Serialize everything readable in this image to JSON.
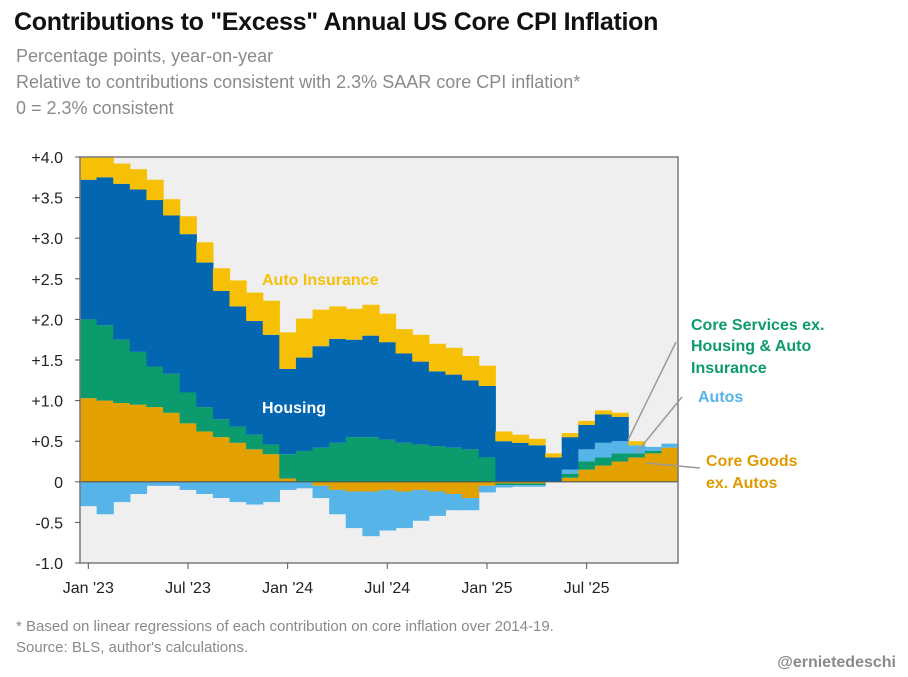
{
  "header": {
    "title": "Contributions to \"Excess\" Annual US Core CPI Inflation",
    "subtitle_1": "Percentage points, year-on-year",
    "subtitle_2": "Relative to contributions consistent with 2.3% SAAR core CPI inflation*",
    "subtitle_3": "0 = 2.3% consistent"
  },
  "footer": {
    "note": "* Based on linear regressions of each contribution on core inflation over 2014-19.",
    "source": "Source: BLS, author's calculations.",
    "handle": "@ernietedeschi"
  },
  "chart_data": {
    "type": "bar",
    "stacked": true,
    "x_tick_labels": [
      "Jan '23",
      "Jul '23",
      "Jan '24",
      "Jul '24",
      "Jan '25",
      "Jul '25"
    ],
    "y_tick_labels": [
      "+4.0",
      "+3.5",
      "+3.0",
      "+2.5",
      "+2.0",
      "+1.5",
      "+1.0",
      "+0.5",
      "0",
      "-0.5",
      "-1.0"
    ],
    "ylim": [
      -1.0,
      4.0
    ],
    "grid": false,
    "categories": [
      "Jan 2023",
      "Feb 2023",
      "Mar 2023",
      "Apr 2023",
      "May 2023",
      "Jun 2023",
      "Jul 2023",
      "Aug 2023",
      "Sep 2023",
      "Oct 2023",
      "Nov 2023",
      "Dec 2023",
      "Jan 2024",
      "Feb 2024",
      "Mar 2024",
      "Apr 2024",
      "May 2024",
      "Jun 2024",
      "Jul 2024",
      "Aug 2024",
      "Sep 2024",
      "Oct 2024",
      "Nov 2024",
      "Dec 2024",
      "Jan 2025",
      "Feb 2025",
      "Mar 2025",
      "Apr 2025",
      "May 2025",
      "Jun 2025",
      "Jul 2025",
      "Aug 2025",
      "Sep 2025",
      "Oct 2025",
      "Nov 2025",
      "Dec 2025"
    ],
    "series": [
      {
        "name": "Core Goods ex. Autos",
        "color": "#e3a100",
        "values": [
          1.03,
          1.0,
          0.97,
          0.95,
          0.92,
          0.85,
          0.72,
          0.62,
          0.55,
          0.48,
          0.4,
          0.34,
          0.04,
          0.0,
          -0.05,
          -0.1,
          -0.12,
          -0.12,
          -0.1,
          -0.12,
          -0.1,
          -0.12,
          -0.15,
          -0.2,
          -0.05,
          -0.02,
          -0.02,
          -0.02,
          0.0,
          0.05,
          0.15,
          0.2,
          0.25,
          0.3,
          0.35,
          0.42
        ]
      },
      {
        "name": "Core Services ex. Housing & Auto Insurance",
        "color": "#0c9b6c",
        "values": [
          0.97,
          0.93,
          0.78,
          0.65,
          0.5,
          0.48,
          0.38,
          0.3,
          0.22,
          0.2,
          0.18,
          0.12,
          0.3,
          0.38,
          0.42,
          0.48,
          0.55,
          0.55,
          0.52,
          0.48,
          0.46,
          0.44,
          0.42,
          0.4,
          0.3,
          -0.02,
          -0.02,
          -0.02,
          0.0,
          0.05,
          0.1,
          0.1,
          0.1,
          0.05,
          0.03,
          0.0
        ]
      },
      {
        "name": "Autos",
        "color": "#56b4e9",
        "values": [
          -0.3,
          -0.4,
          -0.25,
          -0.15,
          -0.05,
          -0.05,
          -0.1,
          -0.15,
          -0.2,
          -0.25,
          -0.28,
          -0.25,
          -0.1,
          -0.08,
          -0.15,
          -0.3,
          -0.45,
          -0.55,
          -0.5,
          -0.45,
          -0.38,
          -0.3,
          -0.2,
          -0.15,
          -0.08,
          -0.03,
          -0.02,
          -0.02,
          0.0,
          0.05,
          0.15,
          0.18,
          0.15,
          0.1,
          0.05,
          0.05
        ]
      },
      {
        "name": "Housing",
        "color": "#0267b0",
        "values": [
          1.72,
          1.82,
          1.92,
          2.0,
          2.05,
          1.95,
          1.95,
          1.78,
          1.58,
          1.48,
          1.4,
          1.35,
          1.05,
          1.15,
          1.25,
          1.28,
          1.2,
          1.25,
          1.2,
          1.1,
          1.02,
          0.92,
          0.9,
          0.85,
          0.88,
          0.5,
          0.48,
          0.45,
          0.3,
          0.4,
          0.3,
          0.35,
          0.3,
          0.0,
          0.0,
          0.0
        ]
      },
      {
        "name": "Auto Insurance",
        "color": "#f6c006",
        "values": [
          0.28,
          0.27,
          0.25,
          0.25,
          0.25,
          0.2,
          0.22,
          0.25,
          0.28,
          0.32,
          0.35,
          0.42,
          0.45,
          0.48,
          0.45,
          0.4,
          0.38,
          0.38,
          0.35,
          0.3,
          0.33,
          0.34,
          0.33,
          0.3,
          0.25,
          0.12,
          0.1,
          0.08,
          0.05,
          0.05,
          0.05,
          0.05,
          0.05,
          0.05,
          0.0,
          0.0
        ]
      }
    ],
    "annotations": [
      {
        "text": "Auto Insurance",
        "series": "Auto Insurance"
      },
      {
        "text": "Housing",
        "series": "Housing"
      },
      {
        "text": "Core Services ex.",
        "series": "Core Services ex. Housing & Auto Insurance"
      },
      {
        "text": "Housing & Auto",
        "series": "Core Services ex. Housing & Auto Insurance"
      },
      {
        "text": "Insurance",
        "series": "Core Services ex. Housing & Auto Insurance"
      },
      {
        "text": "Autos",
        "series": "Autos"
      },
      {
        "text": "Core Goods",
        "series": "Core Goods ex. Autos"
      },
      {
        "text": "ex. Autos",
        "series": "Core Goods ex. Autos"
      }
    ],
    "background_color": "#efefef",
    "frame_color": "#7a7a7a"
  }
}
